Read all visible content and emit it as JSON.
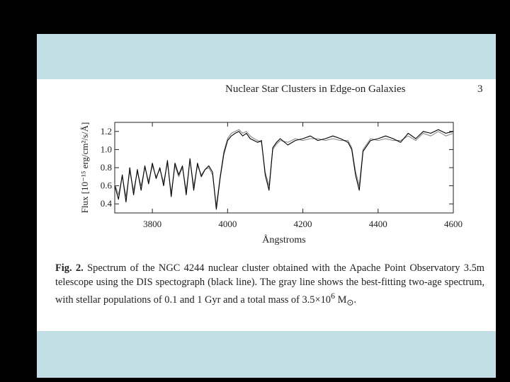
{
  "slide": {
    "background": "#c2dfe6",
    "frame": "#000000"
  },
  "page": {
    "running_head": "Nuclear Star Clusters in Edge-on Galaxies",
    "page_number": "3"
  },
  "caption": {
    "lead": "Fig. 2.",
    "text": "Spectrum of the NGC 4244 nuclear cluster obtained with the Apache Point Observatory 3.5m telescope using the DIS spectograph (black line). The gray line shows the best-fitting two-age spectrum, with stellar populations of 0.1 and 1 Gyr and a total mass of 3.5×10",
    "exp": "6",
    "unit": " M",
    "unit_sub": "⊙",
    "end": "."
  },
  "chart_data": {
    "type": "line",
    "xlabel": "Ångstroms",
    "ylabel": "Flux [10⁻¹⁵ erg/cm²/s/Å]",
    "xlim": [
      3700,
      4600
    ],
    "ylim": [
      0.3,
      1.3
    ],
    "x_ticks": [
      "3800",
      "4000",
      "4200",
      "4400",
      "4600"
    ],
    "y_ticks": [
      "0.4",
      "0.6",
      "0.8",
      "1.0",
      "1.2"
    ],
    "series": [
      {
        "color": "#000000",
        "x": [
          3700,
          3710,
          3720,
          3730,
          3740,
          3750,
          3760,
          3770,
          3780,
          3790,
          3800,
          3810,
          3820,
          3830,
          3840,
          3850,
          3860,
          3870,
          3880,
          3890,
          3900,
          3910,
          3920,
          3930,
          3940,
          3950,
          3960,
          3970,
          3980,
          3990,
          4000,
          4010,
          4020,
          4030,
          4040,
          4050,
          4060,
          4070,
          4080,
          4090,
          4100,
          4110,
          4120,
          4130,
          4140,
          4160,
          4180,
          4200,
          4220,
          4240,
          4260,
          4280,
          4300,
          4320,
          4330,
          4340,
          4350,
          4360,
          4380,
          4400,
          4420,
          4440,
          4460,
          4480,
          4500,
          4520,
          4540,
          4560,
          4580,
          4600
        ],
        "y": [
          0.6,
          0.45,
          0.72,
          0.42,
          0.8,
          0.5,
          0.78,
          0.55,
          0.82,
          0.62,
          0.85,
          0.68,
          0.8,
          0.6,
          0.88,
          0.48,
          0.85,
          0.72,
          0.82,
          0.5,
          0.9,
          0.55,
          0.85,
          0.7,
          0.78,
          0.82,
          0.75,
          0.34,
          0.68,
          0.95,
          1.1,
          1.15,
          1.18,
          1.2,
          1.15,
          1.18,
          1.12,
          1.1,
          1.08,
          1.1,
          0.72,
          0.55,
          1.02,
          1.08,
          1.12,
          1.05,
          1.1,
          1.12,
          1.15,
          1.1,
          1.12,
          1.15,
          1.12,
          1.08,
          1.0,
          0.72,
          0.55,
          0.98,
          1.1,
          1.12,
          1.15,
          1.12,
          1.08,
          1.18,
          1.12,
          1.2,
          1.18,
          1.22,
          1.18,
          1.2
        ]
      },
      {
        "color": "#888888",
        "x": [
          3700,
          3710,
          3720,
          3730,
          3740,
          3750,
          3760,
          3770,
          3780,
          3790,
          3800,
          3810,
          3820,
          3830,
          3840,
          3850,
          3860,
          3870,
          3880,
          3890,
          3900,
          3910,
          3920,
          3930,
          3940,
          3950,
          3960,
          3970,
          3980,
          3990,
          4000,
          4010,
          4020,
          4030,
          4040,
          4050,
          4060,
          4070,
          4080,
          4090,
          4100,
          4110,
          4120,
          4130,
          4140,
          4160,
          4180,
          4200,
          4220,
          4240,
          4260,
          4280,
          4300,
          4320,
          4330,
          4340,
          4350,
          4360,
          4380,
          4400,
          4420,
          4440,
          4460,
          4480,
          4500,
          4520,
          4540,
          4560,
          4580,
          4600
        ],
        "y": [
          0.62,
          0.5,
          0.7,
          0.48,
          0.76,
          0.55,
          0.75,
          0.6,
          0.8,
          0.65,
          0.82,
          0.7,
          0.78,
          0.64,
          0.85,
          0.52,
          0.82,
          0.7,
          0.8,
          0.55,
          0.88,
          0.6,
          0.82,
          0.72,
          0.78,
          0.8,
          0.72,
          0.38,
          0.7,
          0.98,
          1.12,
          1.18,
          1.2,
          1.22,
          1.18,
          1.2,
          1.15,
          1.12,
          1.1,
          1.08,
          0.75,
          0.6,
          1.0,
          1.06,
          1.1,
          1.08,
          1.12,
          1.1,
          1.12,
          1.12,
          1.1,
          1.12,
          1.1,
          1.1,
          1.02,
          0.76,
          0.6,
          1.0,
          1.12,
          1.1,
          1.12,
          1.1,
          1.1,
          1.15,
          1.1,
          1.18,
          1.15,
          1.2,
          1.15,
          1.18
        ]
      }
    ]
  }
}
